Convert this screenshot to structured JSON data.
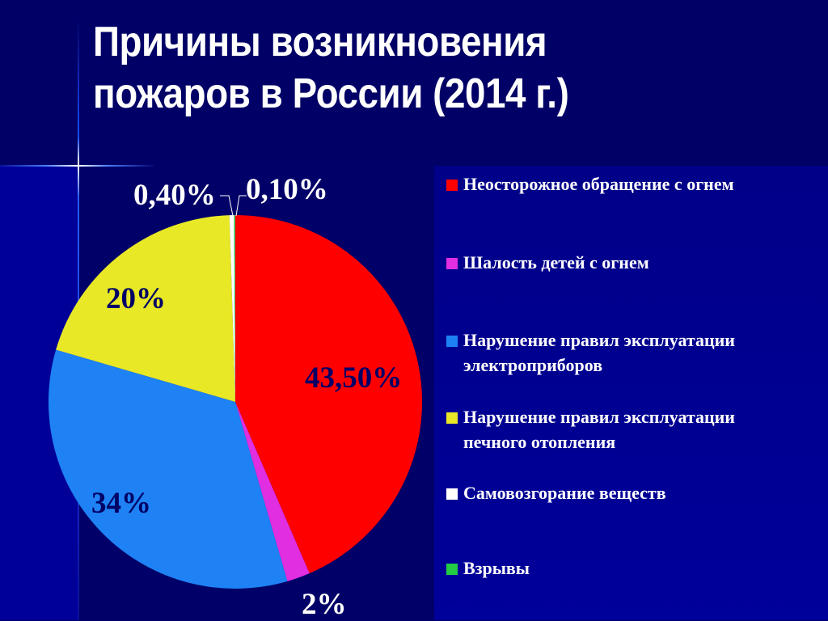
{
  "title": {
    "line1": "Причины возникновения",
    "line2": "пожаров в России (2014 г.)"
  },
  "colors": {
    "background_top": "#000066",
    "panel": "#000099",
    "text": "#ffffff"
  },
  "chart_data": {
    "type": "pie",
    "title": "Причины возникновения пожаров в России (2014 г.)",
    "start_angle": "12 o'clock, clockwise",
    "legend_position": "right",
    "slices": [
      {
        "name": "Неосторожное обращение с огнем",
        "value": 43.5,
        "label": "43,50%",
        "color": "#ff0000"
      },
      {
        "name": "Шалость детей с огнем",
        "value": 2,
        "label": "2%",
        "color": "#e02ee0"
      },
      {
        "name": "Нарушение правил эксплуатации электроприборов",
        "value": 34,
        "label": "34%",
        "color": "#1e82f5"
      },
      {
        "name": "Нарушение правил эксплуатации печного отопления",
        "value": 20,
        "label": "20%",
        "color": "#e8e826"
      },
      {
        "name": "Самовозгорание веществ",
        "value": 0.4,
        "label": "0,40%",
        "color": "#ffffff"
      },
      {
        "name": "Взрывы",
        "value": 0.1,
        "label": "0,10%",
        "color": "#22cc44"
      }
    ]
  },
  "labels": {
    "red": "43,50%",
    "magenta": "2%",
    "blue": "34%",
    "yellow": "20%",
    "white": "0,40%",
    "green": "0,10%"
  },
  "legend": {
    "items": [
      {
        "line1": "Неосторожное обращение с огнем",
        "line2": ""
      },
      {
        "line1": "Шалость детей с огнем",
        "line2": ""
      },
      {
        "line1": "Нарушение правил эксплуатации",
        "line2": "электроприборов"
      },
      {
        "line1": "Нарушение правил эксплуатации",
        "line2": "печного отопления"
      },
      {
        "line1": "Самовозгорание веществ",
        "line2": ""
      },
      {
        "line1": "Взрывы",
        "line2": ""
      }
    ]
  }
}
